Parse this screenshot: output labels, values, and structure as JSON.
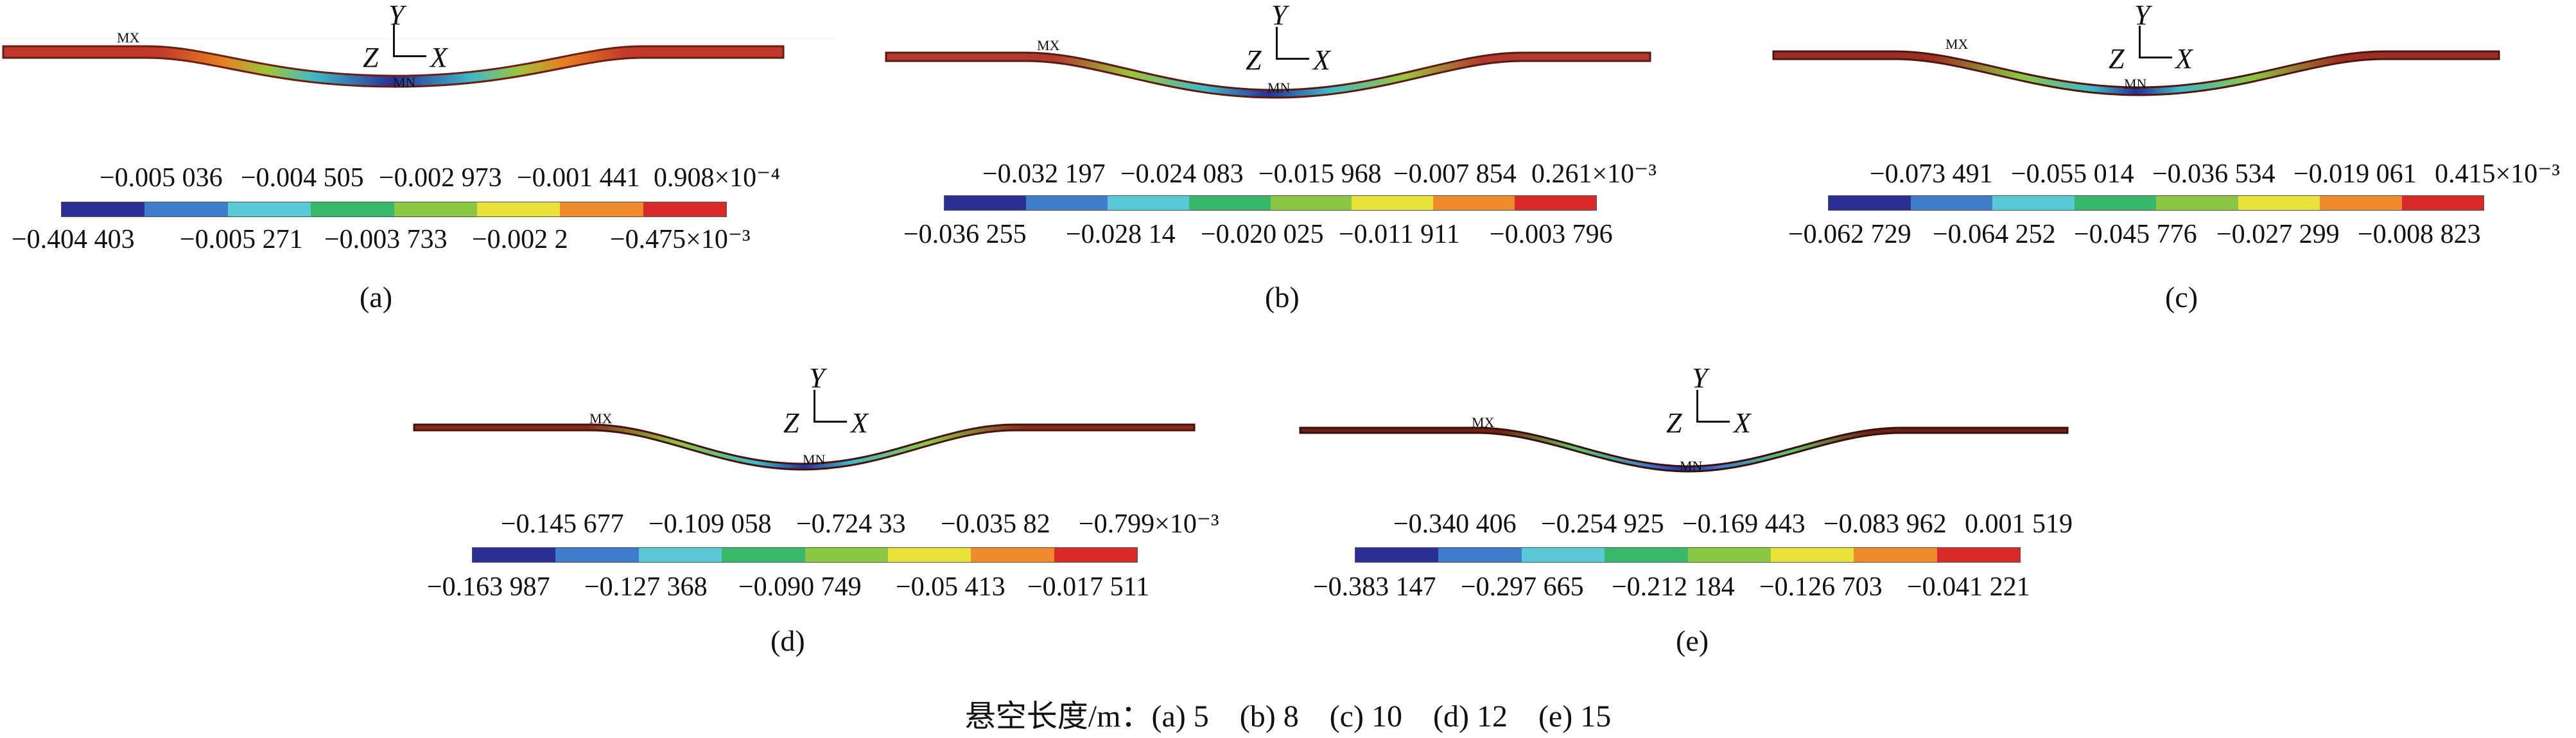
{
  "figure": {
    "caption": "悬空长度/m：(a) 5　(b) 8　(c) 10　(d) 12　(e) 15",
    "colorbar_colors": [
      "#2b2f93",
      "#3f7cc9",
      "#5bc8d6",
      "#37b86b",
      "#8bc644",
      "#e8e23a",
      "#ef8a2e",
      "#d92a2a"
    ],
    "panels": [
      {
        "id": "a",
        "label": "(a)",
        "top_labels": [
          "−0.005 036",
          "−0.004 505",
          "−0.002 973",
          "−0.001 441",
          "0.908×10⁻⁴"
        ],
        "bottom_labels": [
          "−0.404 403",
          "−0.005 271",
          "−0.003 733",
          "−0.002 2",
          "−0.475×10⁻³"
        ]
      },
      {
        "id": "b",
        "label": "(b)",
        "top_labels": [
          "−0.032 197",
          "−0.024 083",
          "−0.015 968",
          "−0.007 854",
          "0.261×10⁻³"
        ],
        "bottom_labels": [
          "−0.036 255",
          "−0.028 14",
          "−0.020 025",
          "−0.011 911",
          "−0.003 796"
        ]
      },
      {
        "id": "c",
        "label": "(c)",
        "top_labels": [
          "−0.073 491",
          "−0.055 014",
          "−0.036 534",
          "−0.019 061",
          "0.415×10⁻³"
        ],
        "bottom_labels": [
          "−0.062 729",
          "−0.064 252",
          "−0.045 776",
          "−0.027 299",
          "−0.008 823"
        ]
      },
      {
        "id": "d",
        "label": "(d)",
        "top_labels": [
          "−0.145 677",
          "−0.109 058",
          "−0.724 33",
          "−0.035 82",
          "−0.799×10⁻³"
        ],
        "bottom_labels": [
          "−0.163 987",
          "−0.127 368",
          "−0.090 749",
          "−0.05 413",
          "−0.017 511"
        ]
      },
      {
        "id": "e",
        "label": "(e)",
        "top_labels": [
          "−0.340 406",
          "−0.254 925",
          "−0.169 443",
          "−0.083 962",
          "0.001 519"
        ],
        "bottom_labels": [
          "−0.383 147",
          "−0.297 665",
          "−0.212 184",
          "−0.126 703",
          "−0.041 221"
        ]
      }
    ],
    "axes": {
      "y": "Y",
      "x": "X",
      "z": "Z"
    },
    "markers": {
      "max": "MX",
      "min": "MN"
    }
  }
}
